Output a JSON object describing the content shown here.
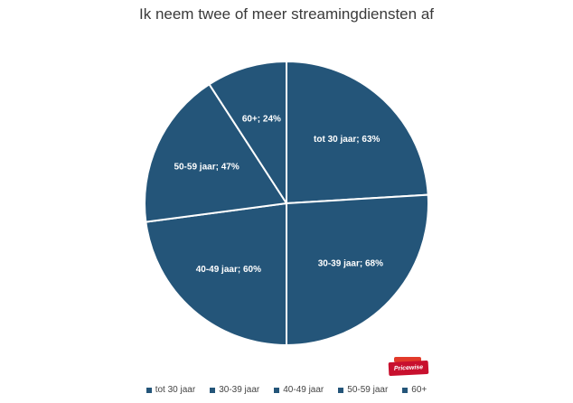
{
  "chart_data": {
    "type": "pie",
    "title": "Ik neem twee of meer streamingdiensten af",
    "categories": [
      "tot 30 jaar",
      "30-39 jaar",
      "40-49 jaar",
      "50-59 jaar",
      "60+"
    ],
    "values": [
      63,
      68,
      60,
      47,
      24
    ],
    "data_labels": [
      "tot 30 jaar; 63%",
      "30-39 jaar; 68%",
      "40-49 jaar; 60%",
      "50-59 jaar; 47%",
      "60+; 24%"
    ],
    "legend": [
      "tot 30 jaar",
      "30-39 jaar",
      "40-49 jaar",
      "50-59 jaar",
      "60+"
    ],
    "legend_position": "bottom",
    "slice_color": "#245579",
    "border_color": "#ffffff"
  },
  "brand": {
    "name": "Pricewise",
    "color": "#c8102e"
  }
}
